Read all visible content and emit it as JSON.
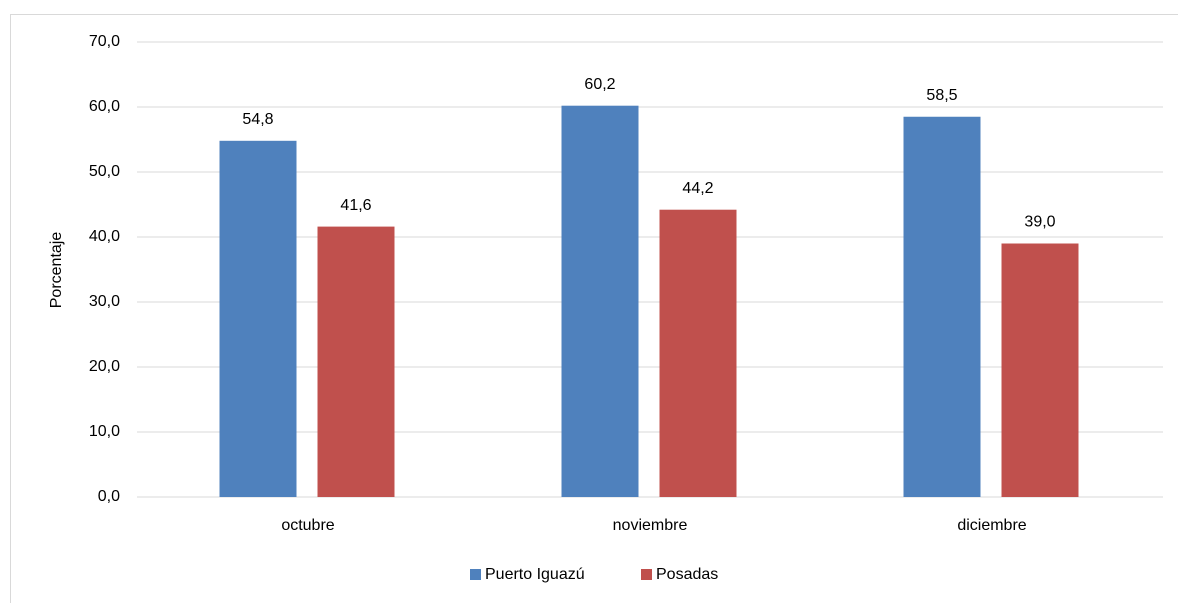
{
  "chart_data": {
    "type": "bar",
    "y_label": "Porcentaje",
    "categories": [
      "octubre",
      "noviembre",
      "diciembre"
    ],
    "series": [
      {
        "name": "Puerto Iguazú",
        "color": "#4f81bd",
        "values": [
          54.8,
          60.2,
          58.5
        ],
        "value_labels": [
          "54,8",
          "60,2",
          "58,5"
        ]
      },
      {
        "name": "Posadas",
        "color": "#c0504d",
        "values": [
          41.6,
          44.2,
          39.0
        ],
        "value_labels": [
          "41,6",
          "44,2",
          "39,0"
        ]
      }
    ],
    "ylim": [
      0,
      70
    ],
    "yticks": [
      {
        "value": 0,
        "label": "0,0"
      },
      {
        "value": 10,
        "label": "10,0"
      },
      {
        "value": 20,
        "label": "20,0"
      },
      {
        "value": 30,
        "label": "30,0"
      },
      {
        "value": 40,
        "label": "40,0"
      },
      {
        "value": 50,
        "label": "50,0"
      },
      {
        "value": 60,
        "label": "60,0"
      },
      {
        "value": 70,
        "label": "70,0"
      }
    ],
    "grid": true,
    "legend": "bottom"
  }
}
